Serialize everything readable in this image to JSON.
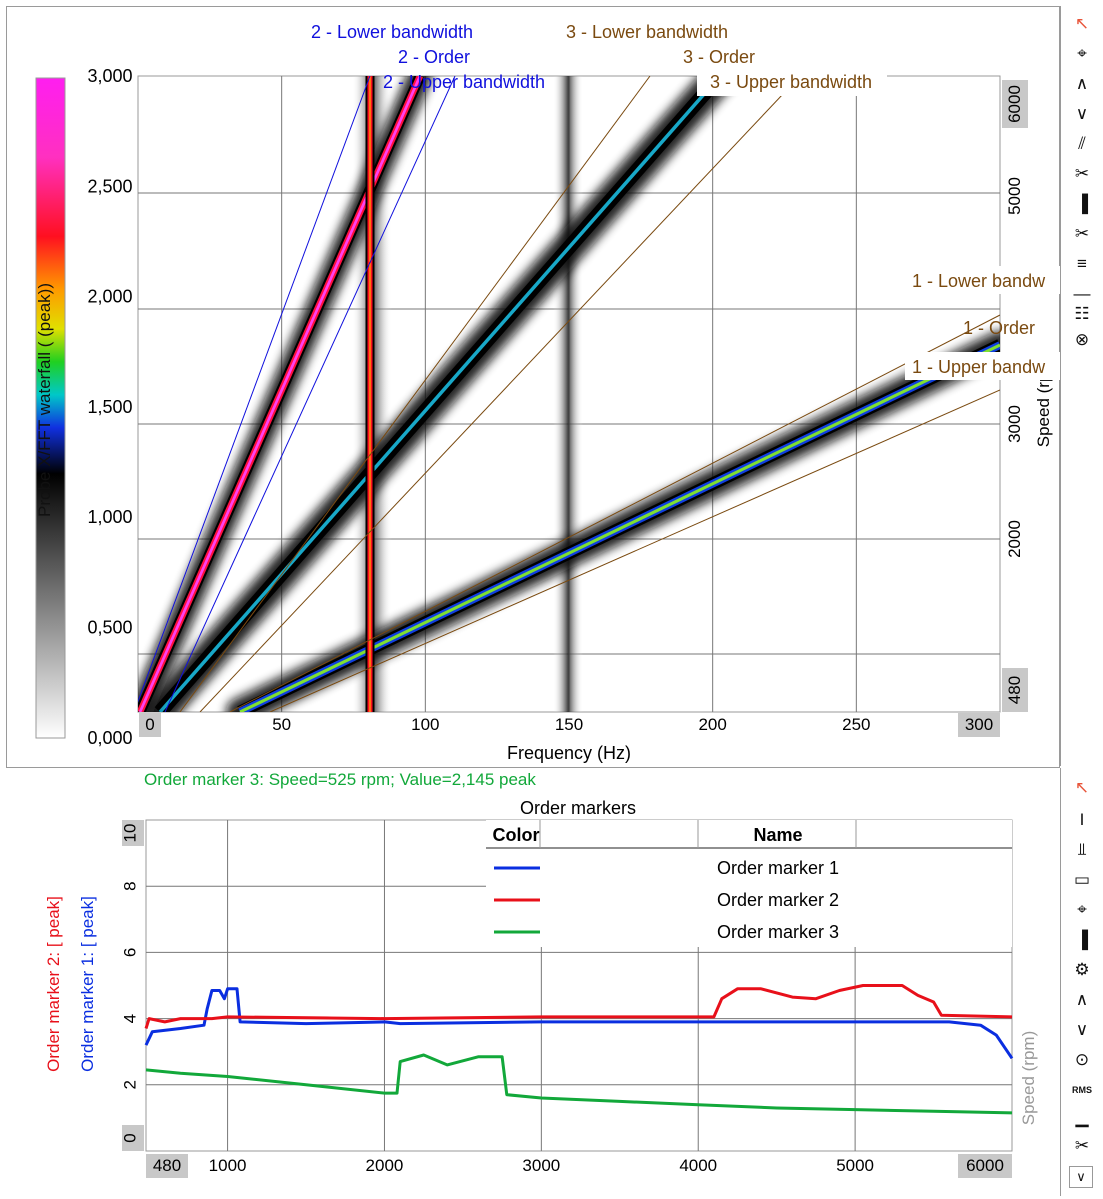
{
  "colors": {
    "order1": "#0a2ee0",
    "order2": "#e8101a",
    "order3": "#12a83a",
    "brown": "#7a4a10",
    "blueLabel": "#1010dd",
    "status_green": "#12a83a",
    "tick_box": "#c8c8c8"
  },
  "waterfall": {
    "colorbar": {
      "label": "Probe X/FFT waterfall ( (peak))",
      "ticks": [
        "3,000",
        "2,500",
        "2,000",
        "1,500",
        "1,000",
        "0,500",
        "0,000"
      ]
    },
    "xaxis": {
      "label": "Frequency (Hz)",
      "min_label": "0",
      "max_label": "300",
      "ticks": [
        "50",
        "100",
        "150",
        "200",
        "250"
      ]
    },
    "yaxis_right": {
      "label": "Speed (rpm)",
      "max_label": "6000",
      "min_label": "480",
      "ticks": [
        "5000",
        "3000",
        "2000"
      ]
    },
    "order_labels": {
      "o2_lower": "2 - Lower bandwidth",
      "o2_order": "2 - Order",
      "o2_upper": "2 - Upper bandwidth",
      "o3_lower": "3 - Lower bandwidth",
      "o3_order": "3 - Order",
      "o3_upper": "3 - Upper bandwidth",
      "o1_lower": "1 - Lower bandw",
      "o1_order": "1 - Order",
      "o1_upper": "1 - Upper bandw"
    }
  },
  "status_text": "Order marker 3: Speed=525 rpm; Value=2,145  peak",
  "chart_data": {
    "type": "line",
    "title": "Order markers",
    "xlabel": "Speed (rpm)",
    "xlim": [
      480,
      6000
    ],
    "x_min_label": "480",
    "x_max_label": "6000",
    "x_ticks": [
      "1000",
      "2000",
      "3000",
      "4000",
      "5000"
    ],
    "ylim": [
      0,
      10
    ],
    "y_ticks": [
      "10",
      "8",
      "6",
      "4",
      "2",
      "0"
    ],
    "ylabel_1": "Order marker 2: [ peak]",
    "ylabel_2": "Order marker 1: [ peak]",
    "legend": {
      "col_color": "Color",
      "col_name": "Name",
      "placement": "top-right"
    },
    "series": [
      {
        "name": "Order marker 1",
        "color": "#0a2ee0",
        "points": [
          [
            480,
            3.2
          ],
          [
            520,
            3.6
          ],
          [
            700,
            3.7
          ],
          [
            850,
            3.8
          ],
          [
            870,
            4.3
          ],
          [
            900,
            4.85
          ],
          [
            950,
            4.85
          ],
          [
            980,
            4.6
          ],
          [
            1000,
            4.9
          ],
          [
            1060,
            4.9
          ],
          [
            1080,
            3.9
          ],
          [
            1500,
            3.85
          ],
          [
            2000,
            3.9
          ],
          [
            2100,
            3.85
          ],
          [
            3000,
            3.9
          ],
          [
            4000,
            3.9
          ],
          [
            5000,
            3.9
          ],
          [
            5600,
            3.9
          ],
          [
            5800,
            3.8
          ],
          [
            5900,
            3.5
          ],
          [
            6000,
            2.8
          ]
        ]
      },
      {
        "name": "Order marker 2",
        "color": "#e8101a",
        "points": [
          [
            480,
            3.7
          ],
          [
            500,
            4.0
          ],
          [
            600,
            3.9
          ],
          [
            700,
            4.0
          ],
          [
            900,
            4.0
          ],
          [
            1000,
            4.05
          ],
          [
            2000,
            4.0
          ],
          [
            3000,
            4.05
          ],
          [
            4000,
            4.05
          ],
          [
            4100,
            4.05
          ],
          [
            4150,
            4.6
          ],
          [
            4250,
            4.9
          ],
          [
            4400,
            4.9
          ],
          [
            4600,
            4.65
          ],
          [
            4750,
            4.6
          ],
          [
            4900,
            4.85
          ],
          [
            5050,
            5.0
          ],
          [
            5300,
            5.0
          ],
          [
            5400,
            4.7
          ],
          [
            5500,
            4.5
          ],
          [
            5550,
            4.1
          ],
          [
            6000,
            4.05
          ]
        ]
      },
      {
        "name": "Order marker 3",
        "color": "#12a83a",
        "points": [
          [
            480,
            2.45
          ],
          [
            700,
            2.35
          ],
          [
            1000,
            2.25
          ],
          [
            1500,
            2.0
          ],
          [
            2000,
            1.75
          ],
          [
            2080,
            1.75
          ],
          [
            2100,
            2.7
          ],
          [
            2250,
            2.9
          ],
          [
            2400,
            2.6
          ],
          [
            2600,
            2.85
          ],
          [
            2750,
            2.85
          ],
          [
            2780,
            1.7
          ],
          [
            3000,
            1.6
          ],
          [
            3500,
            1.5
          ],
          [
            4000,
            1.4
          ],
          [
            4500,
            1.3
          ],
          [
            5000,
            1.25
          ],
          [
            5500,
            1.2
          ],
          [
            6000,
            1.15
          ]
        ]
      }
    ]
  }
}
